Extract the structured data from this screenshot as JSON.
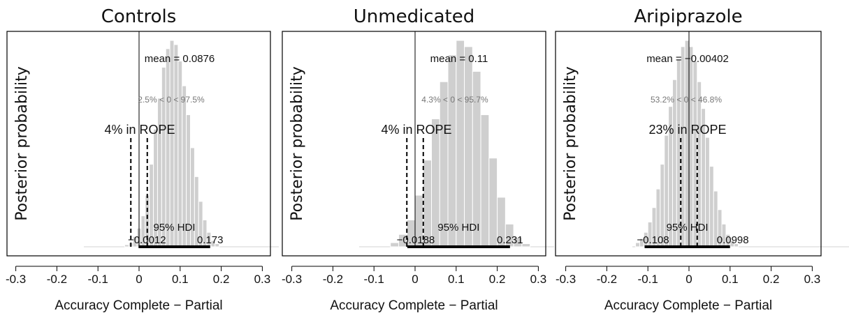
{
  "chart_data": [
    {
      "type": "bar",
      "title": "Controls",
      "xlabel": "Accuracy Complete − Partial",
      "ylabel": "Posterior probability",
      "xlim": [
        -0.3,
        0.3
      ],
      "xticks": [
        "-0.3",
        "-0.2",
        "-0.1",
        "0",
        "0.1",
        "0.2",
        "0.3"
      ],
      "mean_label": "mean = 0.0876",
      "comp_label": "2.5% < 0 < 97.5%",
      "rope_label": "4% in ROPE",
      "hdi_label": "95% HDI",
      "hdi_low_label": "−0.0012",
      "hdi_high_label": "0.173",
      "hdi": [
        -0.0012,
        0.173
      ],
      "rope": [
        -0.02,
        0.02
      ],
      "bin_width": 0.01,
      "bins": [
        [
          -0.03,
          0.01
        ],
        [
          -0.02,
          0.02
        ],
        [
          -0.01,
          0.05
        ],
        [
          0.0,
          0.09
        ],
        [
          0.01,
          0.15
        ],
        [
          0.02,
          0.25
        ],
        [
          0.03,
          0.4
        ],
        [
          0.04,
          0.57
        ],
        [
          0.05,
          0.72
        ],
        [
          0.06,
          0.87
        ],
        [
          0.07,
          0.96
        ],
        [
          0.08,
          1.0
        ],
        [
          0.09,
          0.98
        ],
        [
          0.1,
          0.9
        ],
        [
          0.11,
          0.78
        ],
        [
          0.12,
          0.64
        ],
        [
          0.13,
          0.48
        ],
        [
          0.14,
          0.34
        ],
        [
          0.15,
          0.22
        ],
        [
          0.16,
          0.13
        ],
        [
          0.17,
          0.07
        ],
        [
          0.18,
          0.03
        ],
        [
          0.19,
          0.015
        ]
      ]
    },
    {
      "type": "bar",
      "title": "Unmedicated",
      "xlabel": "Accuracy Complete − Partial",
      "ylabel": "Posterior probability",
      "xlim": [
        -0.3,
        0.3
      ],
      "xticks": [
        "-0.3",
        "-0.2",
        "-0.1",
        "0",
        "0.1",
        "0.2",
        "0.3"
      ],
      "mean_label": "mean = 0.11",
      "comp_label": "4.3% < 0 < 95.7%",
      "rope_label": "4% in ROPE",
      "hdi_label": "95% HDI",
      "hdi_low_label": "−0.0188",
      "hdi_high_label": "0.231",
      "hdi": [
        -0.0188,
        0.231
      ],
      "rope": [
        -0.02,
        0.02
      ],
      "bin_width": 0.02,
      "bins": [
        [
          -0.05,
          0.02
        ],
        [
          -0.03,
          0.06
        ],
        [
          -0.01,
          0.13
        ],
        [
          0.01,
          0.25
        ],
        [
          0.03,
          0.42
        ],
        [
          0.05,
          0.62
        ],
        [
          0.07,
          0.8
        ],
        [
          0.09,
          0.93
        ],
        [
          0.11,
          1.0
        ],
        [
          0.13,
          0.97
        ],
        [
          0.15,
          0.85
        ],
        [
          0.17,
          0.64
        ],
        [
          0.19,
          0.43
        ],
        [
          0.21,
          0.24
        ],
        [
          0.23,
          0.11
        ],
        [
          0.25,
          0.045
        ],
        [
          0.27,
          0.015
        ]
      ]
    },
    {
      "type": "bar",
      "title": "Aripiprazole",
      "xlabel": "Accuracy Complete − Partial",
      "ylabel": "Posterior probability",
      "xlim": [
        -0.3,
        0.3
      ],
      "xticks": [
        "-0.3",
        "-0.2",
        "-0.1",
        "0",
        "0.1",
        "0.2",
        "0.3"
      ],
      "mean_label": "mean = −0.00402",
      "comp_label": "53.2% < 0 < 46.8%",
      "rope_label": "23% in ROPE",
      "hdi_label": "95% HDI",
      "hdi_low_label": "−0.108",
      "hdi_high_label": "0.0998",
      "hdi": [
        -0.108,
        0.0998
      ],
      "rope": [
        -0.02,
        0.02
      ],
      "bin_width": 0.01,
      "bins": [
        [
          -0.125,
          0.02
        ],
        [
          -0.115,
          0.04
        ],
        [
          -0.105,
          0.07
        ],
        [
          -0.095,
          0.12
        ],
        [
          -0.085,
          0.19
        ],
        [
          -0.075,
          0.28
        ],
        [
          -0.065,
          0.4
        ],
        [
          -0.055,
          0.54
        ],
        [
          -0.045,
          0.68
        ],
        [
          -0.035,
          0.81
        ],
        [
          -0.025,
          0.91
        ],
        [
          -0.015,
          0.97
        ],
        [
          -0.005,
          1.0
        ],
        [
          0.005,
          0.97
        ],
        [
          0.015,
          0.9
        ],
        [
          0.025,
          0.8
        ],
        [
          0.035,
          0.67
        ],
        [
          0.045,
          0.53
        ],
        [
          0.055,
          0.39
        ],
        [
          0.065,
          0.27
        ],
        [
          0.075,
          0.18
        ],
        [
          0.085,
          0.11
        ],
        [
          0.095,
          0.06
        ],
        [
          0.105,
          0.03
        ],
        [
          0.115,
          0.015
        ]
      ]
    }
  ]
}
